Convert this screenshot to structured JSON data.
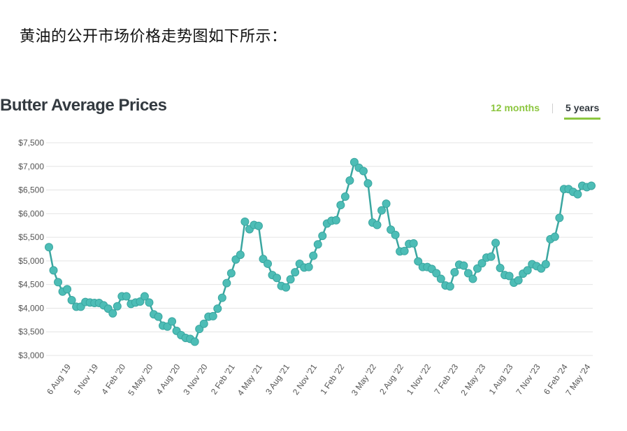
{
  "intro_text": "黄油的公开市场价格走势图如下所示：",
  "range_tabs": {
    "months12_label": "12 months",
    "years5_label": "5 years"
  },
  "colors": {
    "line": "#3aa6a0",
    "marker": "#4dbdb6",
    "grid": "#e4e4e4",
    "accent": "#8cc63f"
  },
  "chart_data": {
    "type": "line",
    "title": "Butter Average Prices",
    "xlabel": "",
    "ylabel": "",
    "ylim": [
      3000,
      7500
    ],
    "yticks": [
      {
        "value": 3000,
        "label": "$3,000"
      },
      {
        "value": 3500,
        "label": "$3,500"
      },
      {
        "value": 4000,
        "label": "$4,000"
      },
      {
        "value": 4500,
        "label": "$4,500"
      },
      {
        "value": 5000,
        "label": "$5,000"
      },
      {
        "value": 5500,
        "label": "$5,500"
      },
      {
        "value": 6000,
        "label": "$6,000"
      },
      {
        "value": 6500,
        "label": "$6,500"
      },
      {
        "value": 7000,
        "label": "$7,000"
      },
      {
        "value": 7500,
        "label": "$7,500"
      }
    ],
    "xticks": [
      {
        "index": 3,
        "label": "6 Aug '19"
      },
      {
        "index": 9,
        "label": "5 Nov '19"
      },
      {
        "index": 15,
        "label": "4 Feb '20"
      },
      {
        "index": 21,
        "label": "5 May '20"
      },
      {
        "index": 27,
        "label": "4 Aug '20"
      },
      {
        "index": 33,
        "label": "3 Nov '20"
      },
      {
        "index": 39,
        "label": "2 Feb '21"
      },
      {
        "index": 45,
        "label": "4 May '21"
      },
      {
        "index": 51,
        "label": "3 Aug '21"
      },
      {
        "index": 57,
        "label": "2 Nov '21"
      },
      {
        "index": 63,
        "label": "1 Feb '22"
      },
      {
        "index": 70,
        "label": "3 May '22"
      },
      {
        "index": 76,
        "label": "2 Aug '22"
      },
      {
        "index": 82,
        "label": "1 Nov '22"
      },
      {
        "index": 88,
        "label": "7 Feb '23"
      },
      {
        "index": 94,
        "label": "2 May '23"
      },
      {
        "index": 100,
        "label": "1 Aug '23"
      },
      {
        "index": 106,
        "label": "7 Nov '23"
      },
      {
        "index": 112,
        "label": "6 Feb '24"
      },
      {
        "index": 117,
        "label": "7 May '24"
      }
    ],
    "grid": true,
    "series": [
      {
        "values": [
          5290,
          4800,
          4550,
          4350,
          4400,
          4170,
          4030,
          4030,
          4130,
          4120,
          4110,
          4110,
          4060,
          3990,
          3890,
          4040,
          4250,
          4250,
          4090,
          4120,
          4140,
          4250,
          4120,
          3870,
          3820,
          3630,
          3610,
          3720,
          3520,
          3430,
          3370,
          3350,
          3290,
          3560,
          3670,
          3820,
          3830,
          3990,
          4220,
          4530,
          4740,
          5030,
          5130,
          5830,
          5670,
          5760,
          5740,
          5040,
          4940,
          4700,
          4640,
          4470,
          4440,
          4610,
          4760,
          4940,
          4860,
          4870,
          5110,
          5350,
          5530,
          5790,
          5850,
          5860,
          6180,
          6360,
          6700,
          7090,
          6970,
          6900,
          6640,
          5810,
          5760,
          6070,
          6210,
          5660,
          5550,
          5200,
          5210,
          5360,
          5370,
          4990,
          4870,
          4870,
          4830,
          4740,
          4620,
          4480,
          4460,
          4760,
          4920,
          4900,
          4740,
          4620,
          4840,
          4950,
          5070,
          5090,
          5380,
          4850,
          4700,
          4680,
          4540,
          4590,
          4730,
          4800,
          4930,
          4890,
          4840,
          4930,
          5460,
          5510,
          5910,
          6520,
          6520,
          6460,
          6410,
          6590,
          6560,
          6590
        ]
      }
    ]
  }
}
